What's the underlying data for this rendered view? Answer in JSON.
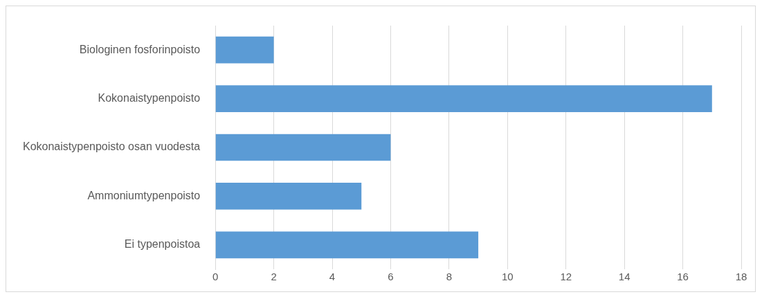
{
  "chart_data": {
    "type": "bar",
    "orientation": "horizontal",
    "categories": [
      "Biologinen fosforinpoisto",
      "Kokonaistypenpoisto",
      "Kokonaistypenpoisto osan vuodesta",
      "Ammoniumtypenpoisto",
      "Ei typenpoistoa"
    ],
    "values": [
      2,
      17,
      6,
      5,
      9
    ],
    "color": "#5b9bd5",
    "xlim": [
      0,
      18
    ],
    "xticks": [
      0,
      2,
      4,
      6,
      8,
      10,
      12,
      14,
      16,
      18
    ],
    "grid": "x",
    "legend": false
  }
}
